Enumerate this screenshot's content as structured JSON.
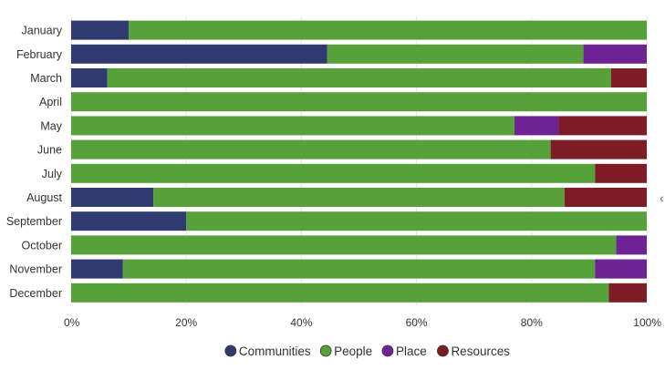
{
  "chart_data": {
    "type": "bar",
    "orientation": "horizontal",
    "stacked": true,
    "normalized": true,
    "categories": [
      "January",
      "February",
      "March",
      "April",
      "May",
      "June",
      "July",
      "August",
      "September",
      "October",
      "November",
      "December"
    ],
    "series": [
      {
        "name": "Communities",
        "color": "#2e3a70",
        "values": [
          10,
          44.5,
          6.3,
          0,
          0,
          0,
          0,
          14.3,
          20,
          0,
          9,
          0
        ]
      },
      {
        "name": "People",
        "color": "#57a13b",
        "values": [
          90,
          44.5,
          87.5,
          100,
          77,
          83.3,
          91,
          71.4,
          80,
          94.7,
          82,
          93.4
        ]
      },
      {
        "name": "Place",
        "color": "#6d2394",
        "values": [
          0,
          11,
          0,
          0,
          7.7,
          0,
          0,
          0,
          0,
          5.3,
          9,
          0
        ]
      },
      {
        "name": "Resources",
        "color": "#7d1c24",
        "values": [
          0,
          0,
          6.2,
          0,
          15.3,
          16.7,
          9,
          14.3,
          0,
          0,
          0,
          6.6
        ]
      }
    ],
    "xlim": [
      0,
      100
    ],
    "x_ticks": [
      "0%",
      "20%",
      "40%",
      "60%",
      "80%",
      "100%"
    ],
    "legend_position": "bottom-center",
    "grid": true
  },
  "side_glyph": "‹"
}
